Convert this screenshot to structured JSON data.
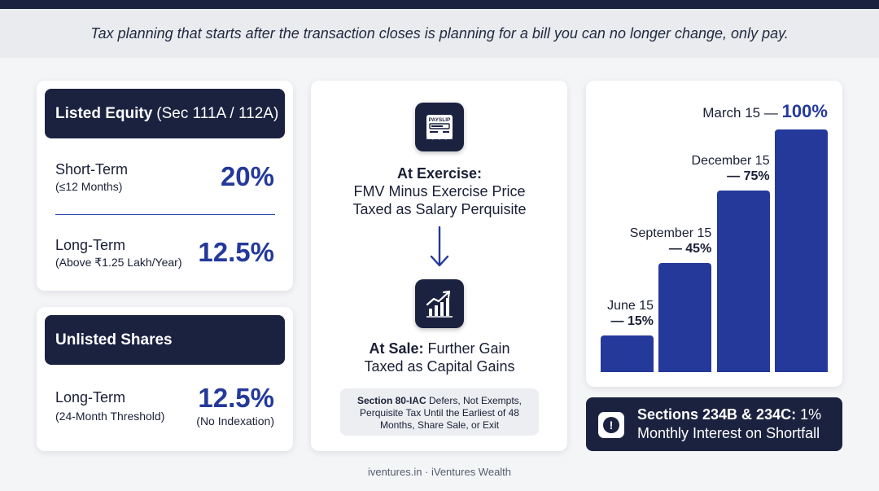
{
  "banner": {
    "text": "Tax planning that starts after the transaction closes is planning for a bill you can no longer change, only pay."
  },
  "listed": {
    "title": "Listed Equity",
    "subtitle": "(Sec 111A / 112A)",
    "short_label": "Short-Term",
    "short_note": "(≤12 Months)",
    "short_pct": "20%",
    "long_label": "Long-Term",
    "long_note": "(Above ₹1.25 Lakh/Year)",
    "long_pct": "12.5%"
  },
  "unlisted": {
    "title": "Unlisted Shares",
    "long_label": "Long-Term",
    "long_note": "(24-Month Threshold)",
    "long_pct": "12.5%",
    "pct_note": "(No Indexation)"
  },
  "flow": {
    "payslip_icon_text": "PAYSLIP",
    "exercise_head": "At Exercise:",
    "exercise_line1": "FMV Minus Exercise Price",
    "exercise_line2": "Taxed as Salary Perquisite",
    "sale_head": "At Sale:",
    "sale_line1": "Further Gain",
    "sale_line2": "Taxed as Capital Gains",
    "note_head": "Section 80-IAC",
    "note_line1": "Defers, Not Exempts,",
    "note_line2": "Perquisite Tax Until the Earliest of 48",
    "note_line3": "Months, Share Sale, or Exit"
  },
  "chart_data": {
    "type": "bar",
    "categories": [
      "June 15",
      "September 15",
      "December 15",
      "March 15"
    ],
    "values": [
      15,
      45,
      75,
      100
    ],
    "labels": [
      "— 15%",
      "— 45%",
      "— 75%",
      "— 100%"
    ],
    "ylim": [
      0,
      100
    ],
    "color": "#24399a"
  },
  "alert": {
    "head": "Sections 234B & 234C:",
    "rest": "1%",
    "line2": "Monthly Interest on Shortfall"
  },
  "footer": {
    "text": "iventures.in · iVentures Wealth"
  }
}
